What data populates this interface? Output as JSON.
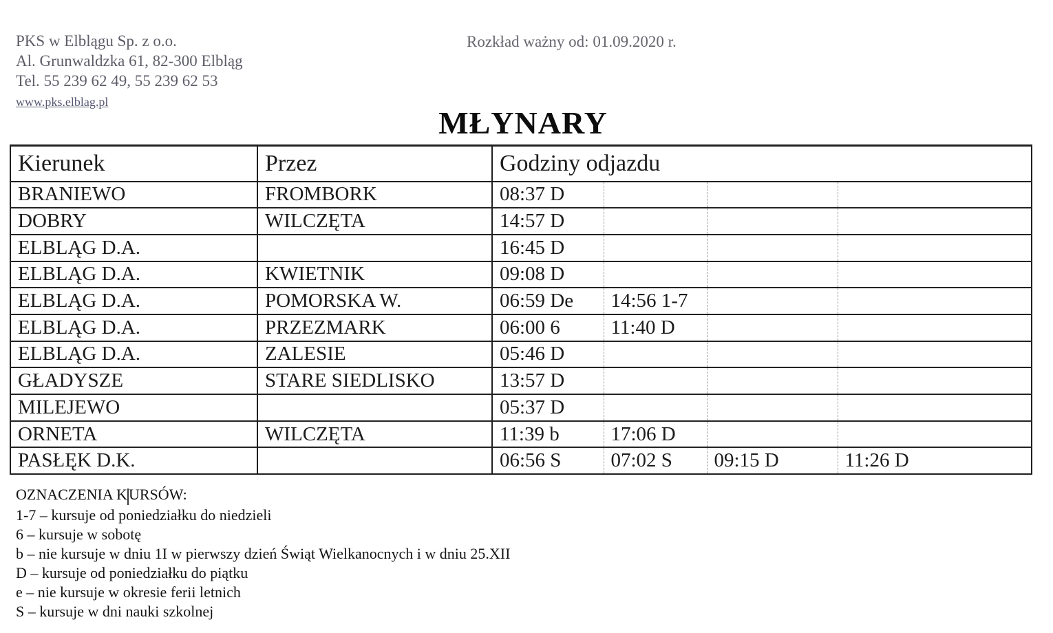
{
  "meta": {
    "page_bg": "#ffffff",
    "contact_text_color": "#5d5d68",
    "link_color": "#585874",
    "table_border_color": "#1f1f1f",
    "dashed_separator_color": "#9a9a9a",
    "body_text_color": "#1c1c1c"
  },
  "header": {
    "company": "PKS w Elblągu Sp. z o.o.",
    "address": "Al. Grunwaldzka 61, 82-300 Elbląg",
    "phone": "Tel. 55 239 62 49, 55 239 62 53",
    "website": "www.pks.elblag.pl",
    "validity": "Rozkład ważny od: 01.09.2020 r."
  },
  "title": "MŁYNARY",
  "table": {
    "columns": [
      "Kierunek",
      "Przez",
      "Godziny odjazdu"
    ],
    "rows": [
      {
        "kierunek": "BRANIEWO",
        "przez": "FROMBORK",
        "times": [
          "08:37 D",
          "",
          "",
          ""
        ]
      },
      {
        "kierunek": "DOBRY",
        "przez": "WILCZĘTA",
        "times": [
          "14:57 D",
          "",
          "",
          ""
        ]
      },
      {
        "kierunek": "ELBLĄG D.A.",
        "przez": "",
        "times": [
          "16:45 D",
          "",
          "",
          ""
        ]
      },
      {
        "kierunek": "ELBLĄG D.A.",
        "przez": "KWIETNIK",
        "times": [
          "09:08 D",
          "",
          "",
          ""
        ]
      },
      {
        "kierunek": "ELBLĄG D.A.",
        "przez": "POMORSKA W.",
        "times": [
          "06:59 De",
          "14:56 1-7",
          "",
          ""
        ]
      },
      {
        "kierunek": "ELBLĄG D.A.",
        "przez": "PRZEZMARK",
        "times": [
          "06:00 6",
          "11:40 D",
          "",
          ""
        ]
      },
      {
        "kierunek": "ELBLĄG D.A.",
        "przez": "ZALESIE",
        "times": [
          "05:46 D",
          "",
          "",
          ""
        ]
      },
      {
        "kierunek": "GŁADYSZE",
        "przez": "STARE SIEDLISKO",
        "times": [
          "13:57 D",
          "",
          "",
          ""
        ]
      },
      {
        "kierunek": "MILEJEWO",
        "przez": "",
        "times": [
          "05:37 D",
          "",
          "",
          ""
        ]
      },
      {
        "kierunek": "ORNETA",
        "przez": "WILCZĘTA",
        "times": [
          "11:39 b",
          "17:06 D",
          "",
          ""
        ]
      },
      {
        "kierunek": "PASŁĘK D.K.",
        "przez": "",
        "times": [
          "06:56 S",
          "07:02 S",
          "09:15 D",
          "11:26 D"
        ]
      }
    ]
  },
  "legend": {
    "title_before_caret": "OZNACZENIA K",
    "title_after_caret": "URSÓW:",
    "items": [
      "1-7 – kursuje od poniedziałku do niedzieli",
      "6 – kursuje w sobotę",
      "b – nie kursuje w dniu 1I w pierwszy dzień Świąt Wielkanocnych i w dniu 25.XII",
      "D – kursuje od poniedziałku do piątku",
      "e – nie kursuje w okresie ferii letnich",
      "S – kursuje w dni nauki szkolnej"
    ]
  }
}
